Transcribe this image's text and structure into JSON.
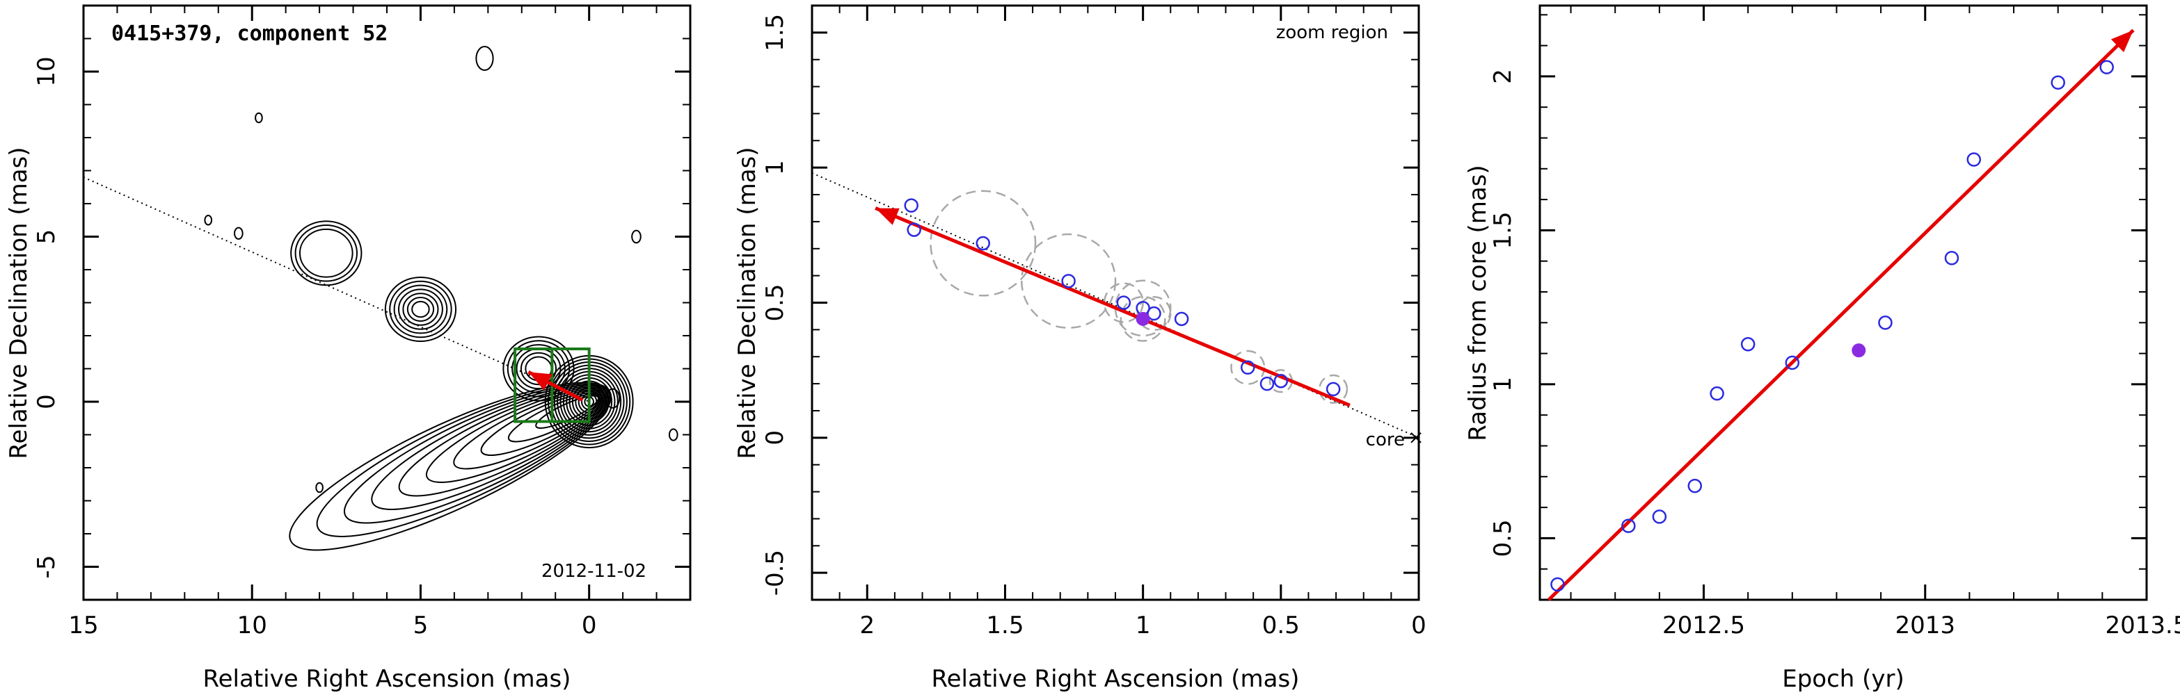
{
  "colors": {
    "trend_arrow": "#e60000",
    "epoch_marker_open": "#2a2ae0",
    "epoch_marker_current": "#8a2be2",
    "zoom_box": "#1a7a1a",
    "error_circle": "#a8a8a8",
    "contour": "#000000"
  },
  "chart_data": [
    {
      "type": "contour",
      "title": "0415+379, component 52",
      "date": "2012-11-02",
      "xlabel": "Relative Right Ascension (mas)",
      "ylabel": "Relative Declination (mas)",
      "xlim": [
        15,
        -3
      ],
      "ylim": [
        -6,
        12
      ],
      "xticks": [
        15,
        10,
        5,
        0
      ],
      "yticks": [
        -5,
        0,
        5,
        10
      ],
      "features": {
        "core": [
          0,
          0
        ],
        "blobs": [
          {
            "x": 5.0,
            "y": 2.8,
            "levels": 7
          },
          {
            "x": 1.5,
            "y": 1.0,
            "levels": 6
          },
          {
            "x": 7.8,
            "y": 4.5,
            "levels": 3
          }
        ],
        "zoom_box": {
          "x_range": [
            0,
            2.2
          ],
          "y_range": [
            -0.6,
            1.6
          ]
        },
        "trajectory_line": {
          "from": [
            15,
            6.8
          ],
          "to": [
            0,
            0
          ]
        },
        "motion_arrow": {
          "from": [
            0.2,
            0.05
          ],
          "to": [
            1.8,
            0.9
          ]
        }
      }
    },
    {
      "type": "scatter",
      "annotation": "zoom region",
      "core_label": "core",
      "xlabel": "Relative Right Ascension (mas)",
      "ylabel": "Relative Declination (mas)",
      "xlim": [
        2.2,
        0
      ],
      "ylim": [
        -0.6,
        1.6
      ],
      "xticks": [
        2,
        1.5,
        1,
        0.5,
        0
      ],
      "yticks": [
        -0.5,
        0,
        0.5,
        1,
        1.5
      ],
      "points": [
        {
          "x": 1.84,
          "y": 0.86,
          "r": 0.0
        },
        {
          "x": 1.83,
          "y": 0.77,
          "r": 0.0
        },
        {
          "x": 1.58,
          "y": 0.72,
          "r": 0.19
        },
        {
          "x": 1.27,
          "y": 0.58,
          "r": 0.17
        },
        {
          "x": 1.07,
          "y": 0.5,
          "r": 0.07
        },
        {
          "x": 1.0,
          "y": 0.48,
          "r": 0.1
        },
        {
          "x": 0.96,
          "y": 0.46,
          "r": 0.06
        },
        {
          "x": 0.86,
          "y": 0.44,
          "r": 0.0
        },
        {
          "x": 0.62,
          "y": 0.26,
          "r": 0.06
        },
        {
          "x": 0.55,
          "y": 0.2,
          "r": 0.0
        },
        {
          "x": 0.5,
          "y": 0.21,
          "r": 0.04
        },
        {
          "x": 0.31,
          "y": 0.18,
          "r": 0.05
        }
      ],
      "current_point": {
        "x": 1.0,
        "y": 0.44,
        "r": 0.08
      },
      "trajectory_line": {
        "from": [
          2.2,
          0.98
        ],
        "to": [
          0,
          0
        ]
      },
      "motion_arrow": {
        "from": [
          0.25,
          0.12
        ],
        "to": [
          1.97,
          0.85
        ]
      }
    },
    {
      "type": "scatter",
      "xlabel": "Epoch (yr)",
      "ylabel": "Radius from core (mas)",
      "xlim": [
        2012.13,
        2013.5
      ],
      "ylim": [
        0.3,
        2.23
      ],
      "xticks": [
        2012.5,
        2013,
        2013.5
      ],
      "xtick_labels": [
        "2012.5",
        "2013",
        "2013.5"
      ],
      "yticks": [
        0.5,
        1,
        1.5,
        2
      ],
      "points": [
        {
          "x": 2012.17,
          "y": 0.35
        },
        {
          "x": 2012.33,
          "y": 0.54
        },
        {
          "x": 2012.4,
          "y": 0.57
        },
        {
          "x": 2012.48,
          "y": 0.67
        },
        {
          "x": 2012.53,
          "y": 0.97
        },
        {
          "x": 2012.6,
          "y": 1.13
        },
        {
          "x": 2012.7,
          "y": 1.07
        },
        {
          "x": 2012.91,
          "y": 1.2
        },
        {
          "x": 2013.06,
          "y": 1.41
        },
        {
          "x": 2013.11,
          "y": 1.73
        },
        {
          "x": 2013.3,
          "y": 1.98
        },
        {
          "x": 2013.41,
          "y": 2.03
        }
      ],
      "current_point": {
        "x": 2012.85,
        "y": 1.11
      },
      "trend_arrow": {
        "from": [
          2012.15,
          0.3
        ],
        "to": [
          2013.47,
          2.15
        ]
      }
    }
  ]
}
